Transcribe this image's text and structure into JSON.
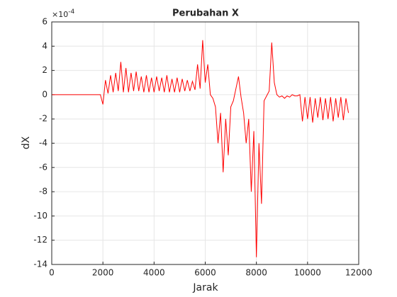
{
  "chart_data": {
    "type": "line",
    "title": "Perubahan X",
    "x_label": "Jarak",
    "y_label": "dX",
    "y_multiplier": {
      "text": "×10",
      "power": "-4"
    },
    "xlim": [
      0,
      12000
    ],
    "xticks": [
      0,
      2000,
      4000,
      6000,
      8000,
      10000,
      12000
    ],
    "ylim": [
      -14,
      6
    ],
    "yticks": [
      -14,
      -12,
      -10,
      -8,
      -6,
      -4,
      -2,
      0,
      2,
      4,
      6
    ],
    "grid": true,
    "series": [
      {
        "color": "#ff0000",
        "x": [
          0,
          1900,
          2000,
          2100,
          2200,
          2300,
          2400,
          2500,
          2600,
          2700,
          2800,
          2900,
          3000,
          3100,
          3200,
          3300,
          3400,
          3500,
          3600,
          3700,
          3800,
          3900,
          4000,
          4100,
          4200,
          4300,
          4400,
          4500,
          4600,
          4700,
          4800,
          4900,
          5000,
          5100,
          5200,
          5300,
          5400,
          5500,
          5600,
          5700,
          5800,
          5900,
          6000,
          6100,
          6200,
          6300,
          6400,
          6500,
          6600,
          6700,
          6800,
          6900,
          7000,
          7100,
          7200,
          7300,
          7400,
          7500,
          7600,
          7700,
          7800,
          7900,
          8000,
          8100,
          8200,
          8300,
          8400,
          8500,
          8600,
          8700,
          8800,
          8900,
          9000,
          9100,
          9200,
          9300,
          9400,
          9500,
          9600,
          9700,
          9800,
          9900,
          10000,
          10100,
          10200,
          10300,
          10400,
          10500,
          10600,
          10700,
          10800,
          10900,
          11000,
          11100,
          11200,
          11300,
          11400,
          11500,
          11600
        ],
        "values": [
          0,
          0,
          -0.8,
          1.2,
          0.1,
          1.6,
          0.2,
          1.8,
          0.3,
          2.7,
          0.2,
          2.2,
          0.2,
          1.8,
          0.3,
          1.9,
          0.3,
          1.5,
          0.2,
          1.6,
          0.2,
          1.4,
          0.2,
          1.5,
          0.3,
          1.4,
          0.2,
          1.6,
          0.2,
          1.3,
          0.2,
          1.4,
          0.2,
          1.3,
          0.3,
          1.2,
          0.3,
          1.1,
          0.4,
          2.5,
          0.5,
          4.5,
          1,
          2.5,
          0,
          -0.3,
          -1,
          -4,
          -1.5,
          -6.4,
          -2,
          -5,
          -1,
          -0.5,
          0.5,
          1.5,
          -0.2,
          -1.5,
          -4,
          -2,
          -8,
          -3,
          -13.4,
          -4,
          -9,
          -0.5,
          -0.1,
          0.3,
          4.3,
          1,
          0,
          -0.2,
          -0.1,
          -0.3,
          -0.1,
          -0.2,
          0,
          -0.1,
          -0.1,
          0,
          -2.2,
          -0.2,
          -2.0,
          -0.2,
          -2.3,
          -0.3,
          -1.9,
          -0.2,
          -2.1,
          -0.3,
          -2.0,
          -0.2,
          -2.2,
          -0.3,
          -1.9,
          -0.2,
          -2.1,
          -0.3,
          -1.5
        ]
      }
    ]
  }
}
